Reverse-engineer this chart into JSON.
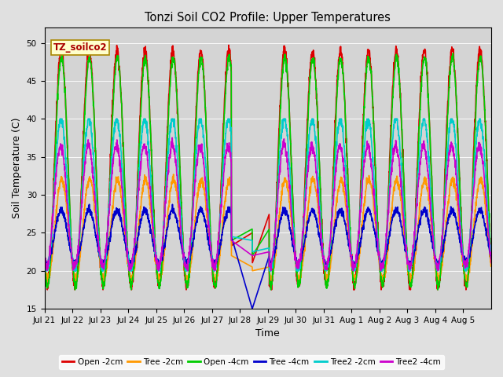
{
  "title": "Tonzi Soil CO2 Profile: Upper Temperatures",
  "xlabel": "Time",
  "ylabel": "Soil Temperature (C)",
  "ylim": [
    15,
    52
  ],
  "yticks": [
    15,
    20,
    25,
    30,
    35,
    40,
    45,
    50
  ],
  "fig_bg_color": "#e0e0e0",
  "plot_bg_color": "#d4d4d4",
  "grid_color": "#bbbbbb",
  "series": {
    "Open -2cm": {
      "color": "#dd0000",
      "lw": 1.2
    },
    "Tree -2cm": {
      "color": "#ff9900",
      "lw": 1.2
    },
    "Open -4cm": {
      "color": "#00cc00",
      "lw": 1.2
    },
    "Tree -4cm": {
      "color": "#0000cc",
      "lw": 1.2
    },
    "Tree2 -2cm": {
      "color": "#00cccc",
      "lw": 1.2
    },
    "Tree2 -4cm": {
      "color": "#cc00cc",
      "lw": 1.2
    }
  },
  "annotation_box": {
    "text": "TZ_soilco2",
    "color": "#aa0000",
    "bg": "#ffffcc",
    "edge": "#aa8800"
  },
  "tick_labels": [
    "Jul 21",
    "Jul 22",
    "Jul 23",
    "Jul 24",
    "Jul 25",
    "Jul 26",
    "Jul 27",
    "Jul 28",
    "Jul 29",
    "Jul 30",
    "Jul 31",
    "Aug 1",
    "Aug 2",
    "Aug 3",
    "Aug 4",
    "Aug 5"
  ]
}
